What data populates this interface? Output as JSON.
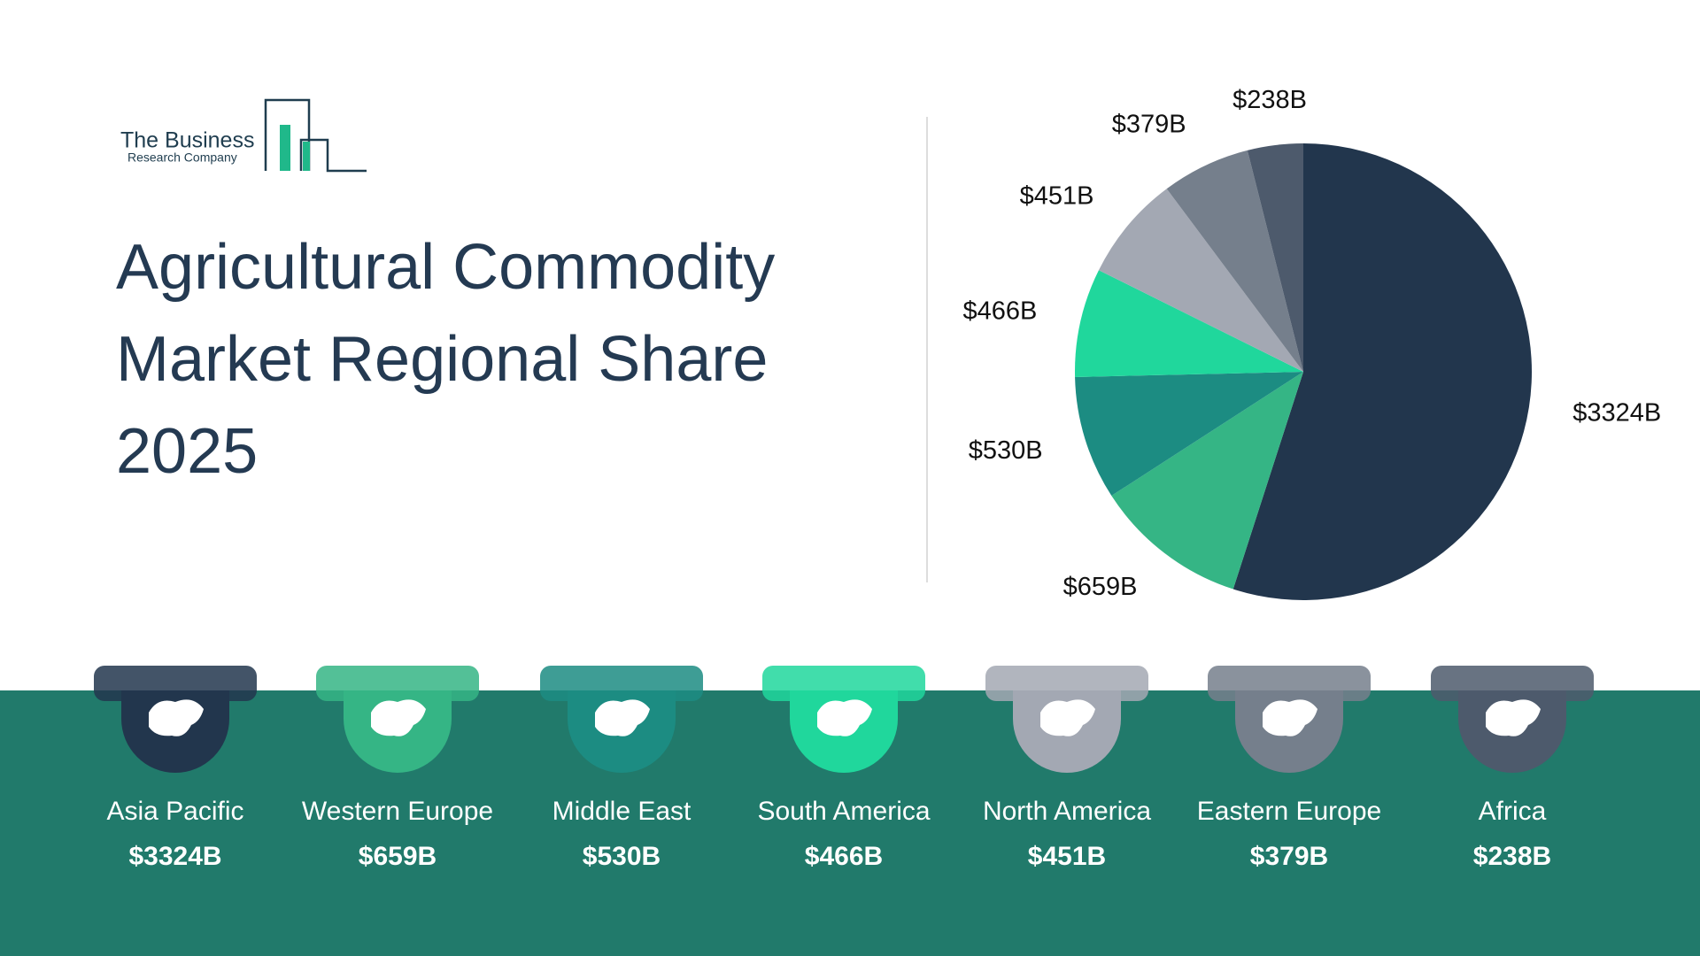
{
  "logo": {
    "line1": "The Business",
    "line2": "Research Company"
  },
  "chart_data": {
    "type": "pie",
    "title": "Agricultural Commodity Market Regional Share 2025",
    "categories": [
      "Asia Pacific",
      "Western Europe",
      "Middle East",
      "South America",
      "North America",
      "Eastern Europe",
      "Africa"
    ],
    "values": [
      3324,
      659,
      530,
      466,
      451,
      379,
      238
    ],
    "value_labels": [
      "$3324B",
      "$659B",
      "$530B",
      "$466B",
      "$451B",
      "$379B",
      "$238B"
    ],
    "colors": [
      "#22364d",
      "#35b585",
      "#1c8c82",
      "#20d79c",
      "#a3a8b3",
      "#757f8c",
      "#4d5a6c"
    ]
  }
}
